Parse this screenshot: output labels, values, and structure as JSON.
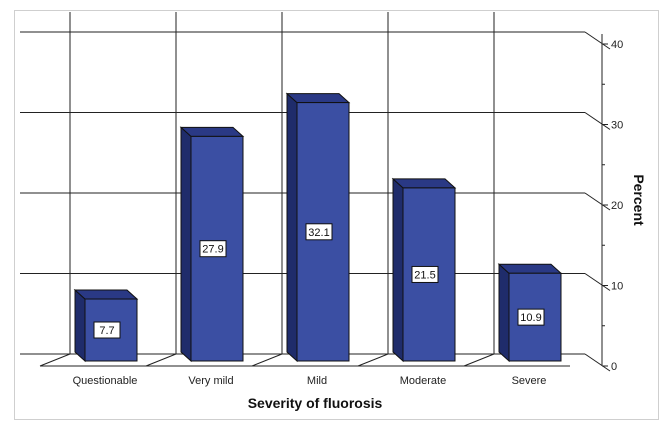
{
  "chart_data": {
    "type": "bar",
    "categories": [
      "Questionable",
      "Very mild",
      "Mild",
      "Moderate",
      "Severe"
    ],
    "values": [
      7.7,
      27.9,
      32.1,
      21.5,
      10.9
    ],
    "data_labels": [
      "7.7",
      "27.9",
      "32.1",
      "21.5",
      "10.9"
    ],
    "xlabel": "Severity of fluorosis",
    "ylabel": "Percent",
    "ylim": [
      0,
      40
    ],
    "yticks": [
      0,
      10,
      20,
      30,
      40
    ],
    "grid": true,
    "style": "3d",
    "bar_color": "#3b4fa3",
    "bar_side_color": "#1f2c6b",
    "bar_top_color": "#2a3985"
  }
}
